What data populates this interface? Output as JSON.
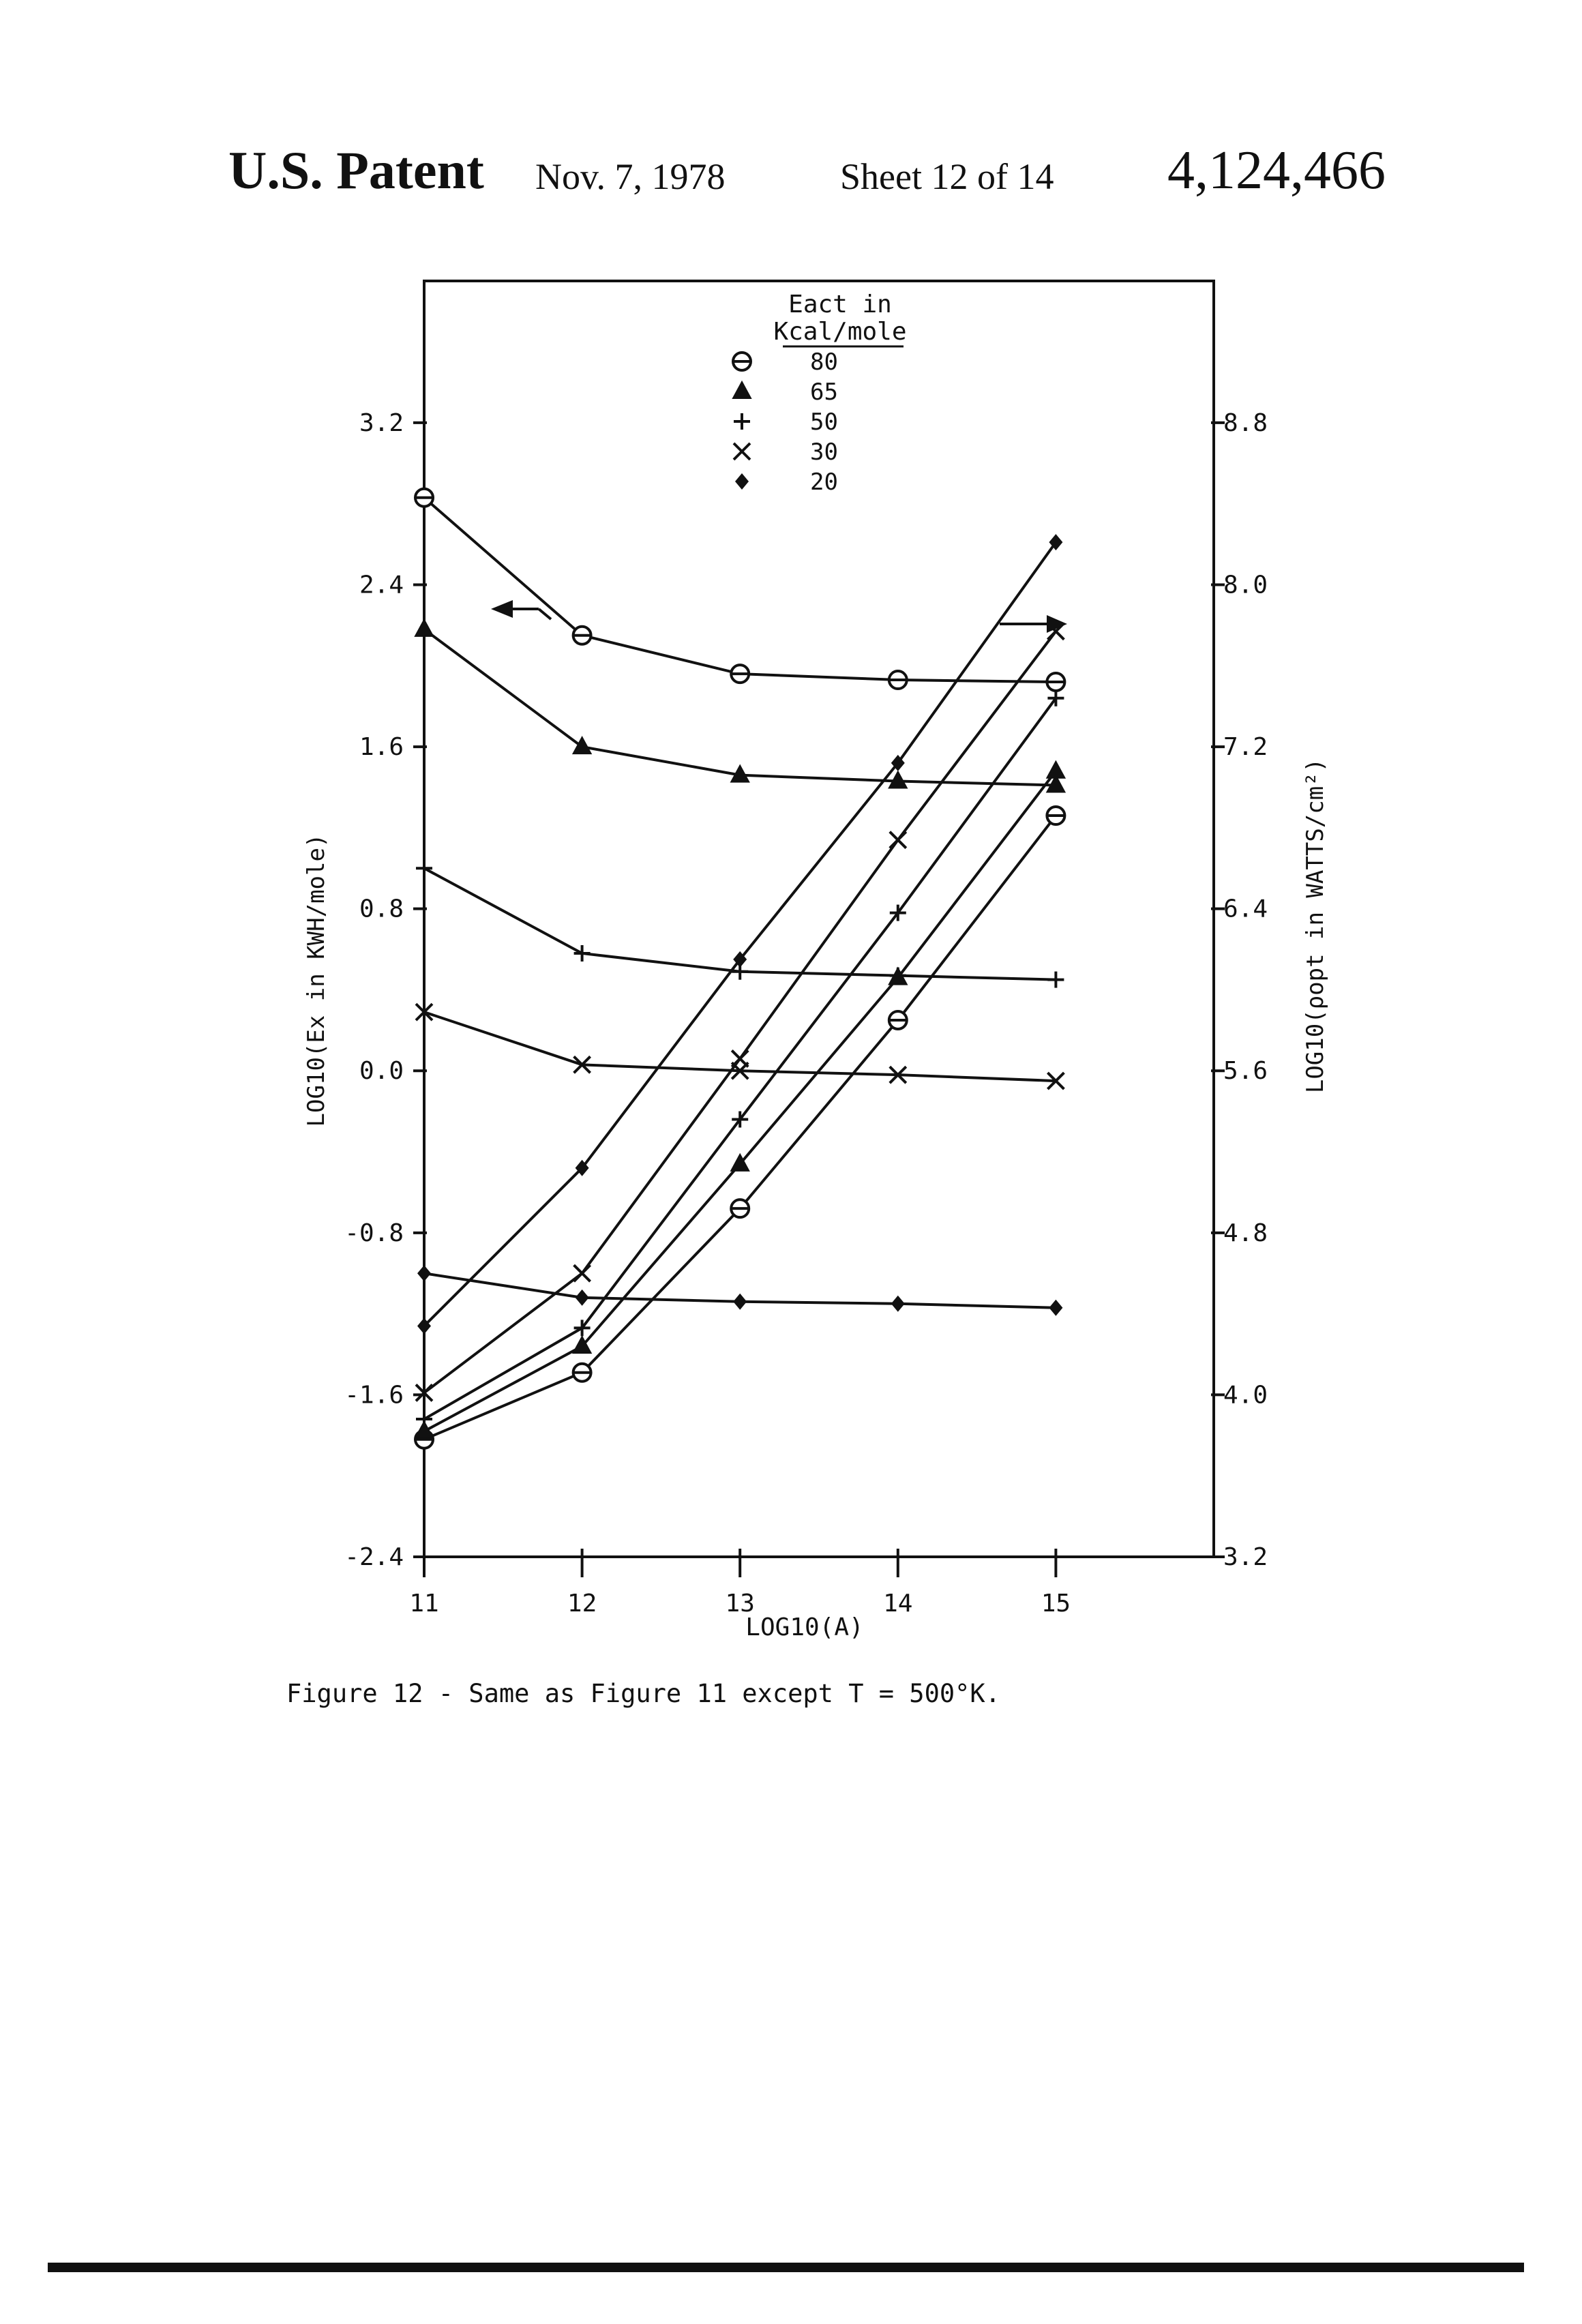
{
  "header": {
    "title": "U.S. Patent",
    "date": "Nov. 7, 1978",
    "sheet": "Sheet 12 of 14",
    "patent_number": "4,124,466"
  },
  "caption": "Figure 12 - Same as Figure 11 except T = 500°K.",
  "chart_data": {
    "type": "line",
    "xlabel": "LOG10(A)",
    "ylabel_left": "LOG10(Ex in KWH/mole)",
    "ylabel_right": "LOG10(ρopt in WATTS/cm²)",
    "x_ticks": [
      "11",
      "12",
      "13",
      "14",
      "15"
    ],
    "y_left_ticks": [
      "-2.4",
      "-1.6",
      "-0.8",
      "0.0",
      "0.8",
      "1.6",
      "2.4",
      "3.2"
    ],
    "y_right_ticks": [
      "3.2",
      "4.0",
      "4.8",
      "5.6",
      "6.4",
      "7.2",
      "8.0",
      "8.8"
    ],
    "xlim": [
      11,
      16
    ],
    "ylim_left": [
      -2.4,
      3.9
    ],
    "ylim_right": [
      3.2,
      9.5
    ],
    "legend": {
      "title_line1": "Eact in",
      "title_line2": "Kcal/mole",
      "entries": [
        {
          "label": "80",
          "marker": "circle-bar"
        },
        {
          "label": "65",
          "marker": "triangle"
        },
        {
          "label": "50",
          "marker": "plus"
        },
        {
          "label": "30",
          "marker": "x"
        },
        {
          "label": "20",
          "marker": "diamond"
        }
      ]
    },
    "series_left": [
      {
        "name": "80",
        "marker": "circle-bar",
        "x": [
          11,
          12,
          13,
          14,
          15
        ],
        "y": [
          2.83,
          2.15,
          1.96,
          1.93,
          1.92
        ]
      },
      {
        "name": "65",
        "marker": "triangle",
        "x": [
          11,
          12,
          13,
          14,
          15
        ],
        "y": [
          2.18,
          1.6,
          1.46,
          1.43,
          1.41
        ]
      },
      {
        "name": "50",
        "marker": "plus",
        "x": [
          11,
          12,
          13,
          14,
          15
        ],
        "y": [
          1.0,
          0.58,
          0.49,
          0.47,
          0.45
        ]
      },
      {
        "name": "30",
        "marker": "x",
        "x": [
          11,
          12,
          13,
          14,
          15
        ],
        "y": [
          0.29,
          0.03,
          0.0,
          -0.02,
          -0.05
        ]
      },
      {
        "name": "20",
        "marker": "diamond",
        "x": [
          11,
          12,
          13,
          14,
          15
        ],
        "y": [
          -1.0,
          -1.12,
          -1.14,
          -1.15,
          -1.17
        ]
      }
    ],
    "series_right": [
      {
        "name": "80",
        "marker": "circle-bar",
        "x": [
          11,
          12,
          13,
          14,
          15
        ],
        "y": [
          3.78,
          4.11,
          4.92,
          5.85,
          6.86
        ]
      },
      {
        "name": "65",
        "marker": "triangle",
        "x": [
          11,
          12,
          13,
          14,
          15
        ],
        "y": [
          3.82,
          4.24,
          5.14,
          6.06,
          7.08
        ]
      },
      {
        "name": "50",
        "marker": "plus",
        "x": [
          11,
          12,
          13,
          14,
          15
        ],
        "y": [
          3.88,
          4.33,
          5.36,
          6.38,
          7.44
        ]
      },
      {
        "name": "30",
        "marker": "x",
        "x": [
          11,
          12,
          13,
          14,
          15
        ],
        "y": [
          4.01,
          4.6,
          5.66,
          6.74,
          7.77
        ]
      },
      {
        "name": "20",
        "marker": "diamond",
        "x": [
          11,
          12,
          13,
          14,
          15
        ],
        "y": [
          4.34,
          5.12,
          6.15,
          7.12,
          8.21
        ]
      }
    ],
    "annotations": [
      {
        "text": "left-arrow",
        "meaning": "upper curve family read on left axis"
      },
      {
        "text": "right-arrow",
        "meaning": "rising curve family read on right axis"
      }
    ]
  }
}
